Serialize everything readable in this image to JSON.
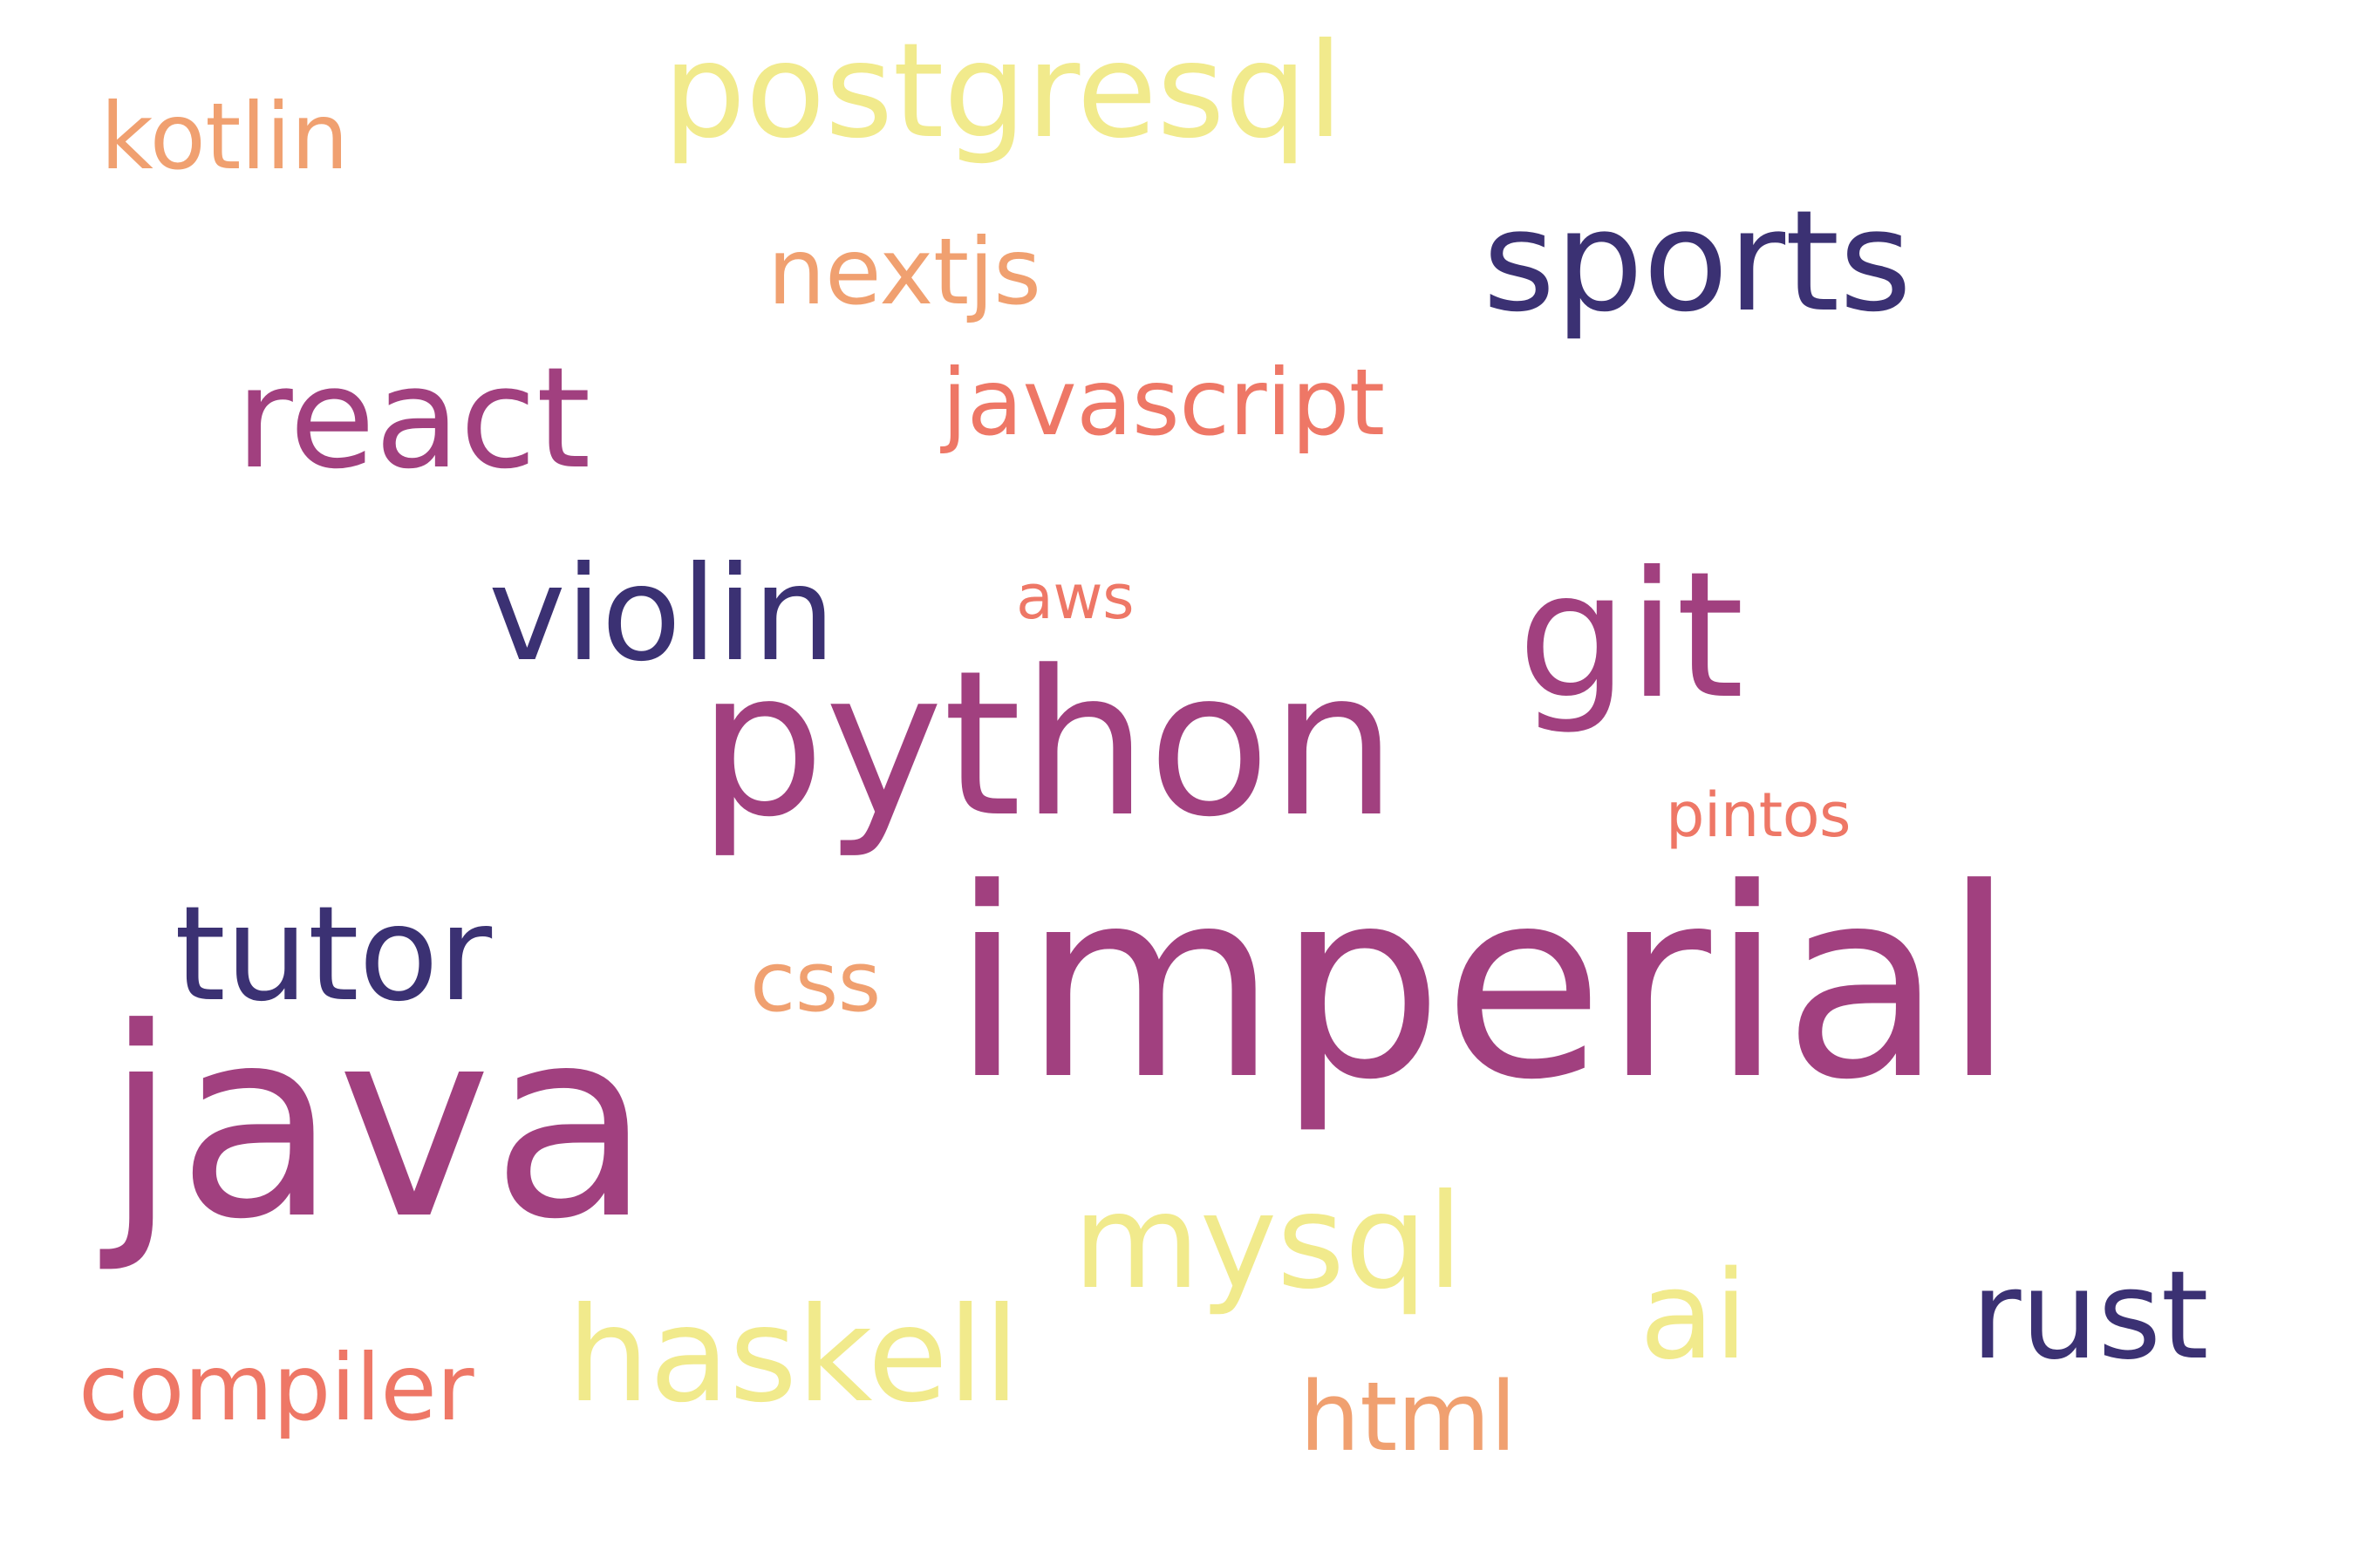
{
  "palette": {
    "background": "#ffffff",
    "dark_indigo": "#3b3173",
    "magenta": "#a1407f",
    "salmon": "#ee7766",
    "orange": "#f0a070",
    "pale_yellow": "#f1ea8c"
  },
  "words": [
    {
      "id": "java",
      "text": "java",
      "color": "#a1407f"
    },
    {
      "id": "imperial",
      "text": "imperial",
      "color": "#a1407f"
    },
    {
      "id": "python",
      "text": "python",
      "color": "#a1407f"
    },
    {
      "id": "git",
      "text": "git",
      "color": "#a1407f"
    },
    {
      "id": "sports",
      "text": "sports",
      "color": "#3b3173"
    },
    {
      "id": "react",
      "text": "react",
      "color": "#a1407f"
    },
    {
      "id": "violin",
      "text": "violin",
      "color": "#3b3173"
    },
    {
      "id": "tutor",
      "text": "tutor",
      "color": "#3b3173"
    },
    {
      "id": "postgresql",
      "text": "postgresql",
      "color": "#f1ea8c"
    },
    {
      "id": "mysql",
      "text": "mysql",
      "color": "#f1ea8c"
    },
    {
      "id": "haskell",
      "text": "haskell",
      "color": "#f1ea8c"
    },
    {
      "id": "rust",
      "text": "rust",
      "color": "#3b3173"
    },
    {
      "id": "ai",
      "text": "ai",
      "color": "#f1ea8c"
    },
    {
      "id": "javascript",
      "text": "javascript",
      "color": "#ee7766"
    },
    {
      "id": "nextjs",
      "text": "nextjs",
      "color": "#f0a070"
    },
    {
      "id": "kotlin",
      "text": "kotlin",
      "color": "#f0a070"
    },
    {
      "id": "css",
      "text": "css",
      "color": "#f0a070"
    },
    {
      "id": "html",
      "text": "html",
      "color": "#f0a070"
    },
    {
      "id": "compiler",
      "text": "compiler",
      "color": "#ee7766"
    },
    {
      "id": "pintos",
      "text": "pintos",
      "color": "#ee7766"
    },
    {
      "id": "aws",
      "text": "aws",
      "color": "#ee7766"
    }
  ]
}
